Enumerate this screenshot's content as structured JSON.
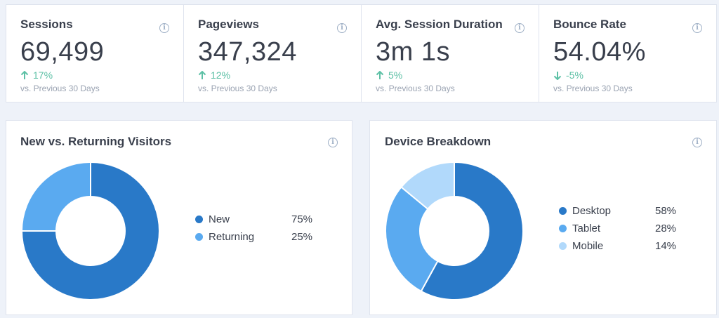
{
  "stats": [
    {
      "title": "Sessions",
      "value": "69,499",
      "change": "17%",
      "direction": "up",
      "sub": "vs. Previous 30 Days"
    },
    {
      "title": "Pageviews",
      "value": "347,324",
      "change": "12%",
      "direction": "up",
      "sub": "vs. Previous 30 Days"
    },
    {
      "title": "Avg. Session Duration",
      "value": "3m 1s",
      "change": "5%",
      "direction": "up",
      "sub": "vs. Previous 30 Days"
    },
    {
      "title": "Bounce Rate",
      "value": "54.04%",
      "change": "-5%",
      "direction": "down",
      "sub": "vs. Previous 30 Days"
    }
  ],
  "visitors": {
    "title": "New vs. Returning Visitors",
    "legend": [
      {
        "label": "New",
        "pct": "75%",
        "value": 75,
        "color": "#2979c8"
      },
      {
        "label": "Returning",
        "pct": "25%",
        "value": 25,
        "color": "#5aaaf0"
      }
    ]
  },
  "devices": {
    "title": "Device Breakdown",
    "legend": [
      {
        "label": "Desktop",
        "pct": "58%",
        "value": 58,
        "color": "#2979c8"
      },
      {
        "label": "Tablet",
        "pct": "28%",
        "value": 28,
        "color": "#5aaaf0"
      },
      {
        "label": "Mobile",
        "pct": "14%",
        "value": 14,
        "color": "#b1d9fb"
      }
    ]
  },
  "colors": {
    "up": "#5cc0a5",
    "down": "#5cc0a5",
    "info": "#9fb0c6"
  },
  "icons": {
    "info": "info-icon",
    "up": "arrow-up-icon",
    "down": "arrow-down-icon"
  }
}
